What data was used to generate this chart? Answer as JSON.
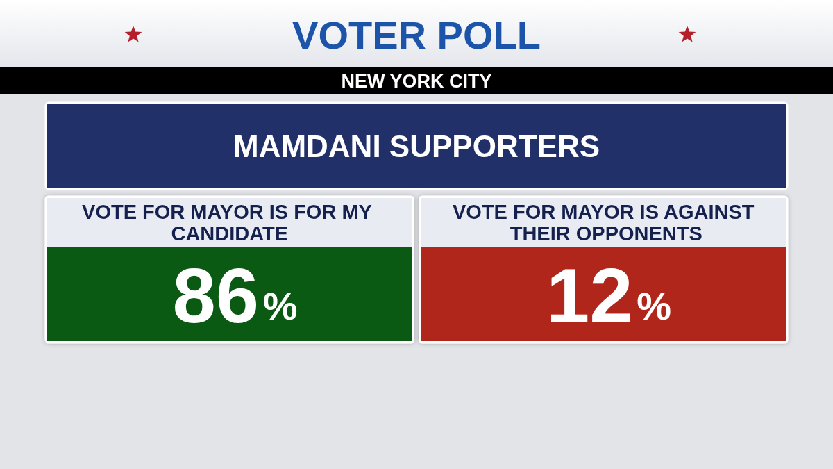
{
  "chart_data": {
    "type": "other",
    "title": "VOTER POLL",
    "subtitle": "NEW YORK CITY",
    "annotations": [
      "MAMDANI SUPPORTERS"
    ],
    "categories": [
      "VOTE FOR MAYOR IS FOR MY CANDIDATE",
      "VOTE FOR MAYOR IS AGAINST THEIR OPPONENTS"
    ],
    "values": [
      86,
      12
    ],
    "value_labels": [
      "86%",
      "12%"
    ]
  }
}
